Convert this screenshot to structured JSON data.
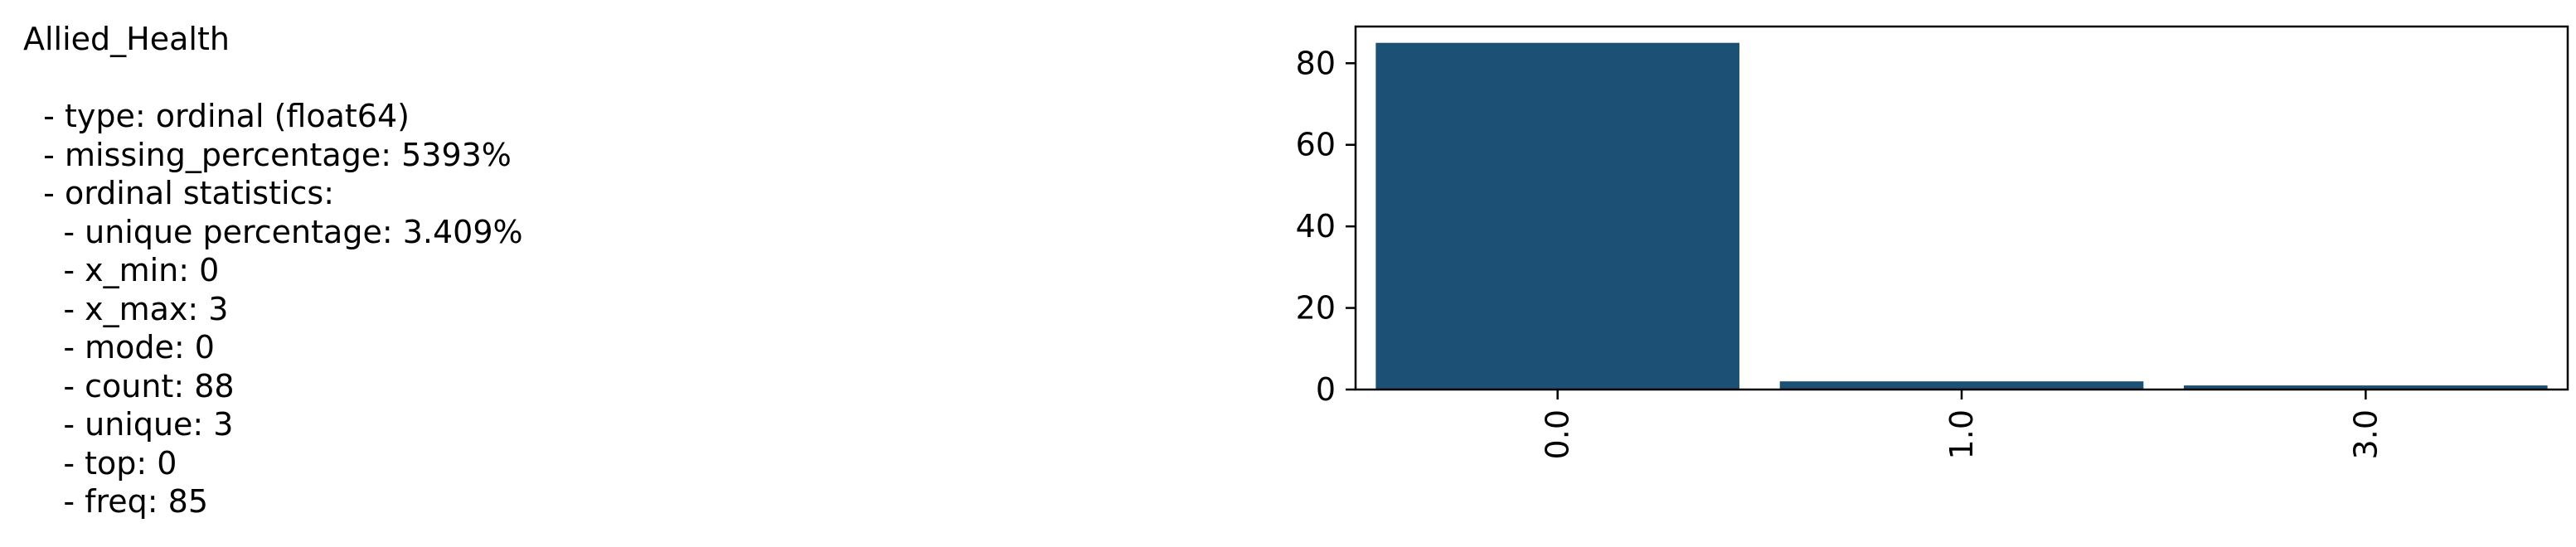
{
  "column_name": "Allied_Health",
  "summary": [
    {
      "text": "  - type: ordinal (float64)"
    },
    {
      "text": "  - missing_percentage: 5393%"
    },
    {
      "text": "  - ordinal statistics:"
    },
    {
      "text": "    - unique percentage: 3.409%"
    },
    {
      "text": "    - x_min: 0"
    },
    {
      "text": "    - x_max: 3"
    },
    {
      "text": "    - mode: 0"
    },
    {
      "text": "    - count: 88"
    },
    {
      "text": "    - unique: 3"
    },
    {
      "text": "    - top: 0"
    },
    {
      "text": "    - freq: 85"
    }
  ],
  "chart_data": {
    "type": "bar",
    "categories": [
      "0.0",
      "1.0",
      "3.0"
    ],
    "values": [
      85,
      2,
      1
    ],
    "ylim": [
      0,
      89
    ],
    "yticks": [
      0,
      20,
      40,
      60,
      80
    ],
    "bar_color": "#1c5175",
    "grid": false
  }
}
